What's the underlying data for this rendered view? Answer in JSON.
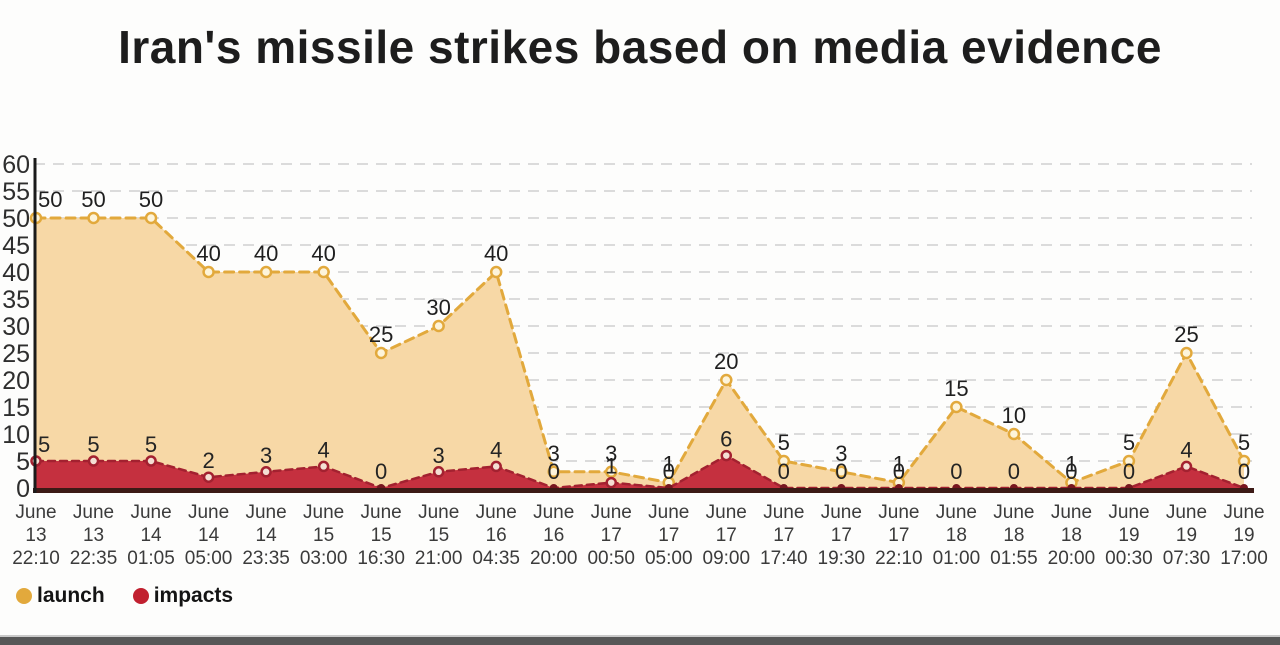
{
  "title": "Iran's missile strikes based on media evidence",
  "legend": [
    {
      "label": "launch",
      "color": "#E2A93C"
    },
    {
      "label": "impacts",
      "color": "#C1202F"
    }
  ],
  "chart_data": {
    "type": "area",
    "title": "Iran's missile strikes based on media evidence",
    "categories": [
      "June 13 22:10",
      "June 13 22:35",
      "June 14 01:05",
      "June 14 05:00",
      "June 14 23:35",
      "June 15 03:00",
      "June 15 16:30",
      "June 15 21:00",
      "June 16 04:35",
      "June 16 20:00",
      "June 17 00:50",
      "June 17 05:00",
      "June 17 09:00",
      "June 17 17:40",
      "June 17 19:30",
      "June 17 22:10",
      "June 18 01:00",
      "June 18 01:55",
      "June 18 20:00",
      "June 19 00:30",
      "June 19 07:30",
      "June 19 17:00"
    ],
    "category_lines": [
      [
        "June",
        "13",
        "22:10"
      ],
      [
        "June",
        "13",
        "22:35"
      ],
      [
        "June",
        "14",
        "01:05"
      ],
      [
        "June",
        "14",
        "05:00"
      ],
      [
        "June",
        "14",
        "23:35"
      ],
      [
        "June",
        "15",
        "03:00"
      ],
      [
        "June",
        "15",
        "16:30"
      ],
      [
        "June",
        "15",
        "21:00"
      ],
      [
        "June",
        "16",
        "04:35"
      ],
      [
        "June",
        "16",
        "20:00"
      ],
      [
        "June",
        "17",
        "00:50"
      ],
      [
        "June",
        "17",
        "05:00"
      ],
      [
        "June",
        "17",
        "09:00"
      ],
      [
        "June",
        "17",
        "17:40"
      ],
      [
        "June",
        "17",
        "19:30"
      ],
      [
        "June",
        "17",
        "22:10"
      ],
      [
        "June",
        "18",
        "01:00"
      ],
      [
        "June",
        "18",
        "01:55"
      ],
      [
        "June",
        "18",
        "20:00"
      ],
      [
        "June",
        "19",
        "00:30"
      ],
      [
        "June",
        "19",
        "07:30"
      ],
      [
        "June",
        "19",
        "17:00"
      ]
    ],
    "series": [
      {
        "name": "launch",
        "values": [
          50,
          50,
          50,
          40,
          40,
          40,
          25,
          30,
          40,
          3,
          3,
          1,
          20,
          5,
          3,
          1,
          15,
          10,
          1,
          5,
          25,
          5
        ],
        "line_color": "#E2A93C",
        "fill_color": "#F7D8A6",
        "marker_fill": "#FDF4DA",
        "label_color": "#1f1f1f"
      },
      {
        "name": "impacts",
        "values": [
          5,
          5,
          5,
          2,
          3,
          4,
          0,
          3,
          4,
          0,
          1,
          0,
          6,
          0,
          0,
          0,
          0,
          0,
          0,
          0,
          4,
          0
        ],
        "line_color": "#A32130",
        "fill_color": "#C5303F",
        "marker_fill": "#F4DFD3",
        "zero_dot_color": "#77161F",
        "label_color": "#242424"
      }
    ],
    "ylim": [
      0,
      60
    ],
    "ytick_step": 5,
    "grid": true,
    "gridline_color": "#DBDBDB",
    "axis_color": "#1a1a1a",
    "baseline_color": "#3C1A16",
    "tick_label_color": "#2e2e2e",
    "xlabel": "",
    "ylabel": "",
    "legend_position": "bottom-left"
  }
}
